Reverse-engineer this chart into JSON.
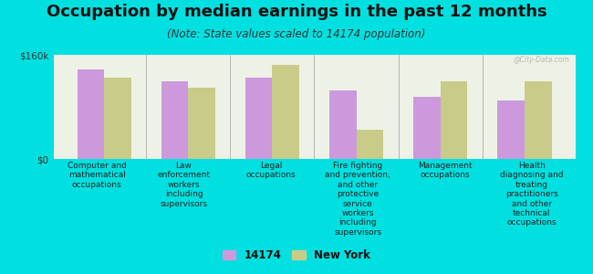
{
  "title": "Occupation by median earnings in the past 12 months",
  "subtitle": "(Note: State values scaled to 14174 population)",
  "background_color": "#00e0e0",
  "plot_bg_color": "#eef2e6",
  "ylim": [
    0,
    160000
  ],
  "yticks": [
    0,
    160000
  ],
  "ytick_labels": [
    "$0",
    "$160k"
  ],
  "categories": [
    "Computer and\nmathematical\noccupations",
    "Law\nenforcement\nworkers\nincluding\nsupervisors",
    "Legal\noccupations",
    "Fire fighting\nand prevention,\nand other\nprotective\nservice\nworkers\nincluding\nsupervisors",
    "Management\noccupations",
    "Health\ndiagnosing and\ntreating\npractitioners\nand other\ntechnical\noccupations"
  ],
  "values_14174": [
    138000,
    120000,
    125000,
    105000,
    95000,
    90000
  ],
  "values_ny": [
    125000,
    110000,
    145000,
    45000,
    120000,
    120000
  ],
  "color_14174": "#cc99dd",
  "color_ny": "#c8cc88",
  "legend_14174": "14174",
  "legend_ny": "New York",
  "bar_width": 0.32,
  "title_fontsize": 13,
  "subtitle_fontsize": 8.5,
  "label_fontsize": 6.5,
  "ytick_fontsize": 7.5,
  "legend_fontsize": 8.5,
  "watermark": "@City-Data.com"
}
